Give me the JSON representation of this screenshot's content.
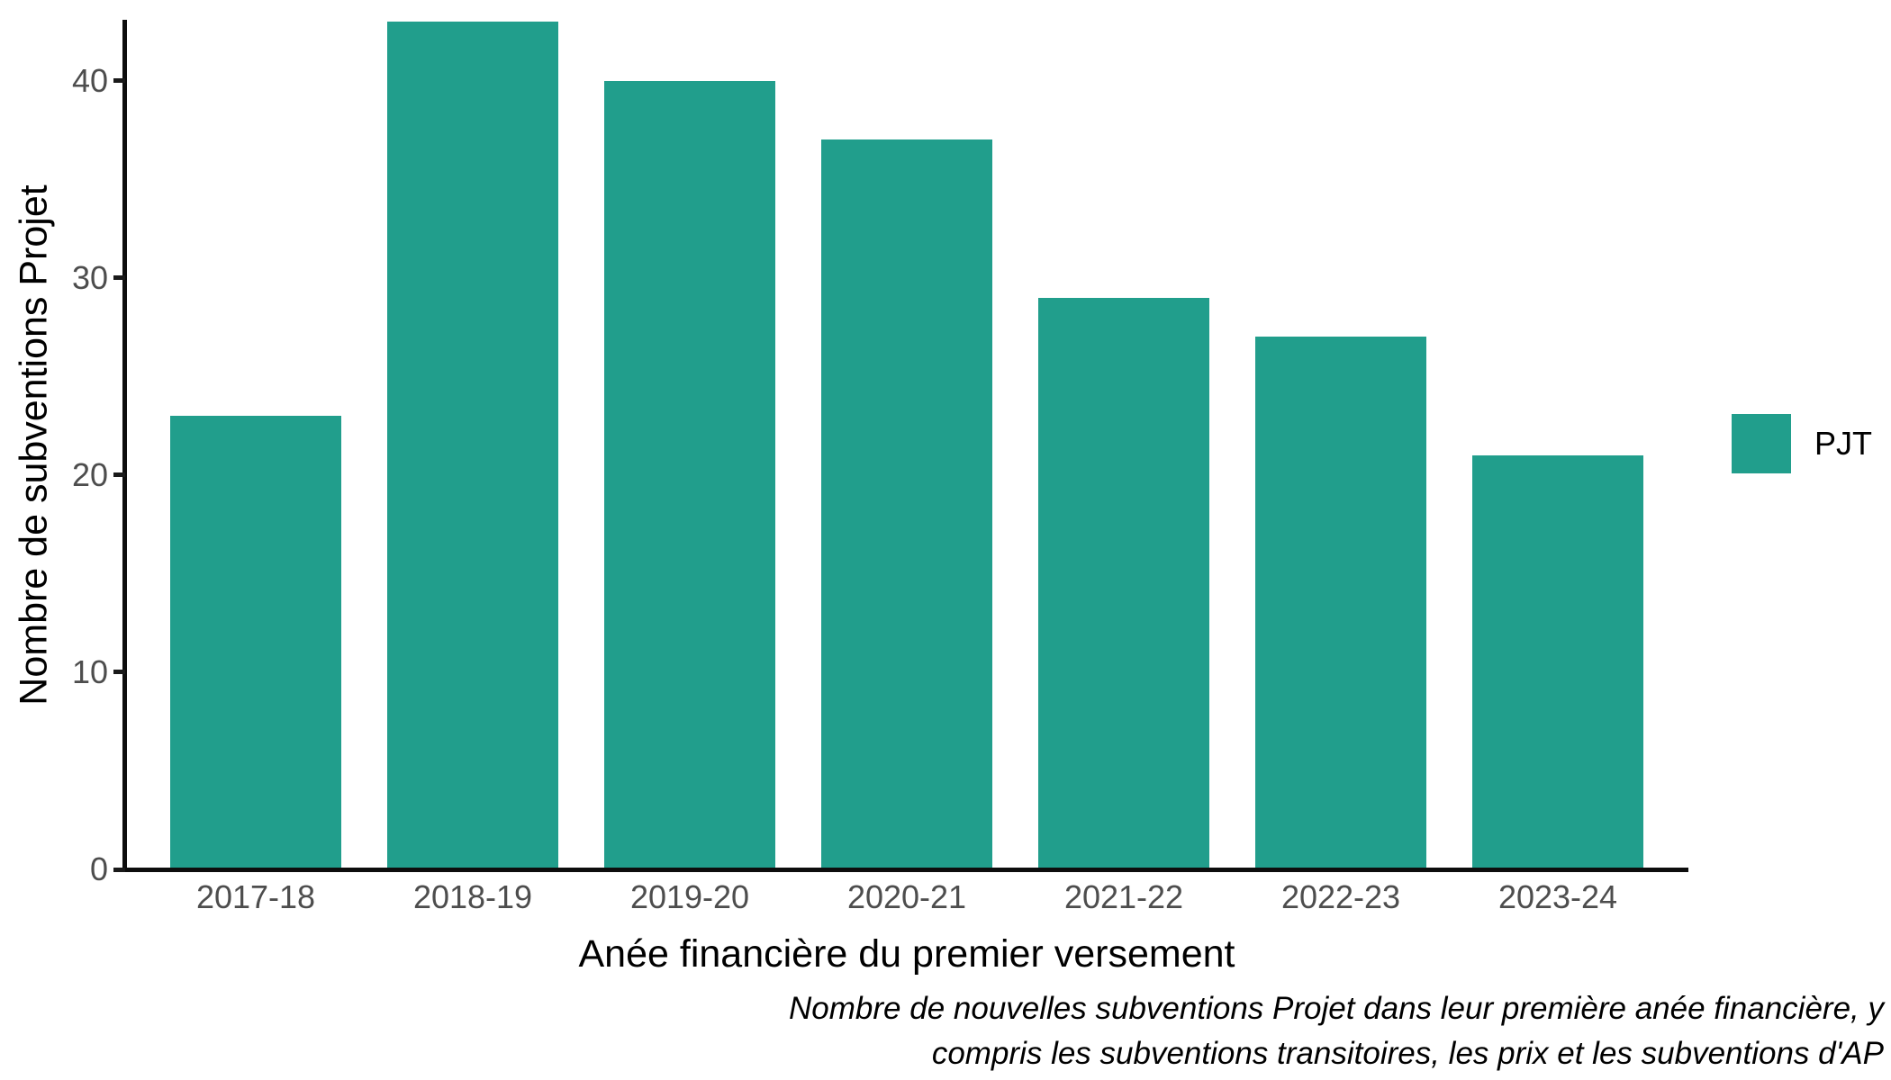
{
  "chart_data": {
    "type": "bar",
    "categories": [
      "2017-18",
      "2018-19",
      "2019-20",
      "2020-21",
      "2021-22",
      "2022-23",
      "2023-24"
    ],
    "values": [
      23,
      43,
      40,
      37,
      29,
      27,
      21
    ],
    "series_name": "PJT",
    "xlabel": "Anée financière du premier versement",
    "ylabel": "Nombre de subventions Projet",
    "yticks": [
      0,
      10,
      20,
      30,
      40
    ],
    "ylim": [
      0,
      43
    ],
    "grid": false,
    "legend": {
      "position": "right",
      "items": [
        {
          "label": "PJT",
          "color": "#219E8C"
        }
      ]
    },
    "caption_lines": [
      "Nombre de nouvelles subventions Projet dans leur première anée financière, y",
      "compris les subventions transitoires, les prix et les subventions d'AP"
    ],
    "colors": {
      "bar": "#219E8C",
      "axis_line": "#0d0d0d",
      "tick_mark": "#1a1a1a",
      "tick_label": "#4d4d4d",
      "text": "#000000",
      "background": "#ffffff"
    }
  }
}
